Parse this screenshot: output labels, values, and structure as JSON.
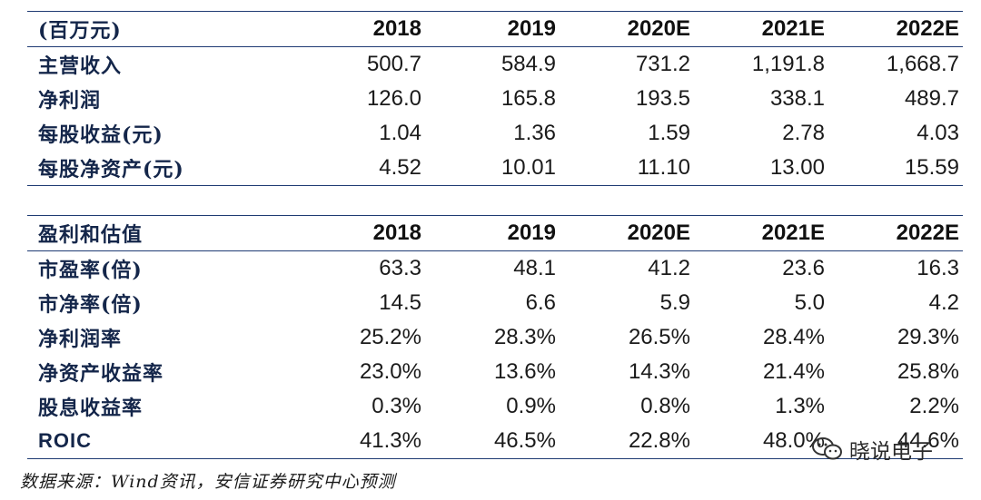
{
  "table1": {
    "header": [
      "(百万元)",
      "2018",
      "2019",
      "2020E",
      "2021E",
      "2022E"
    ],
    "rows": [
      [
        "主营收入",
        "500.7",
        "584.9",
        "731.2",
        "1,191.8",
        "1,668.7"
      ],
      [
        "净利润",
        "126.0",
        "165.8",
        "193.5",
        "338.1",
        "489.7"
      ],
      [
        "每股收益(元)",
        "1.04",
        "1.36",
        "1.59",
        "2.78",
        "4.03"
      ],
      [
        "每股净资产(元)",
        "4.52",
        "10.01",
        "11.10",
        "13.00",
        "15.59"
      ]
    ]
  },
  "table2": {
    "header": [
      "盈利和估值",
      "2018",
      "2019",
      "2020E",
      "2021E",
      "2022E"
    ],
    "rows": [
      [
        "市盈率(倍)",
        "63.3",
        "48.1",
        "41.2",
        "23.6",
        "16.3"
      ],
      [
        "市净率(倍)",
        "14.5",
        "6.6",
        "5.9",
        "5.0",
        "4.2"
      ],
      [
        "净利润率",
        "25.2%",
        "28.3%",
        "26.5%",
        "28.4%",
        "29.3%"
      ],
      [
        "净资产收益率",
        "23.0%",
        "13.6%",
        "14.3%",
        "21.4%",
        "25.8%"
      ],
      [
        "股息收益率",
        "0.3%",
        "0.9%",
        "0.8%",
        "1.3%",
        "2.2%"
      ],
      [
        "ROIC",
        "41.3%",
        "46.5%",
        "22.8%",
        "48.0%",
        "44.6%"
      ]
    ]
  },
  "source": "数据来源：Wind资讯，安信证券研究中心预测",
  "watermark": {
    "text": "晓说电子",
    "icon": "wechat-icon"
  }
}
